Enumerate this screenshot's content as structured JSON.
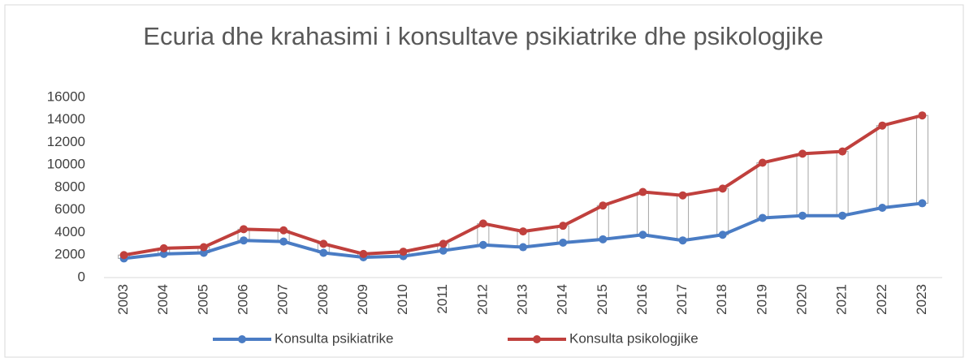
{
  "chart_data": {
    "type": "line",
    "title": "Ecuria dhe krahasimi i konsultave psikiatrike dhe psikologjike",
    "categories": [
      "2003",
      "2004",
      "2005",
      "2006",
      "2007",
      "2008",
      "2009",
      "2010",
      "2011",
      "2012",
      "2013",
      "2014",
      "2015",
      "2016",
      "2017",
      "2018",
      "2019",
      "2020",
      "2021",
      "2022",
      "2023"
    ],
    "series": [
      {
        "name": "Konsulta psikiatrike",
        "color": "#4a7cc4",
        "values": [
          1700,
          2100,
          2200,
          3300,
          3200,
          2200,
          1800,
          1900,
          2400,
          2900,
          2700,
          3100,
          3400,
          3800,
          3300,
          3800,
          5300,
          5500,
          5500,
          6200,
          6600
        ]
      },
      {
        "name": "Konsulta psikologjike",
        "color": "#c0403d",
        "values": [
          2000,
          2600,
          2700,
          4300,
          4200,
          3000,
          2100,
          2300,
          3000,
          4800,
          4100,
          4600,
          6400,
          7600,
          7300,
          7900,
          10200,
          11000,
          11200,
          13500,
          14400
        ]
      }
    ],
    "ylim": [
      0,
      16000
    ],
    "yticks": [
      0,
      2000,
      4000,
      6000,
      8000,
      10000,
      12000,
      14000,
      16000
    ],
    "grid": false,
    "up_down_bars": true,
    "legend": "bottom"
  }
}
